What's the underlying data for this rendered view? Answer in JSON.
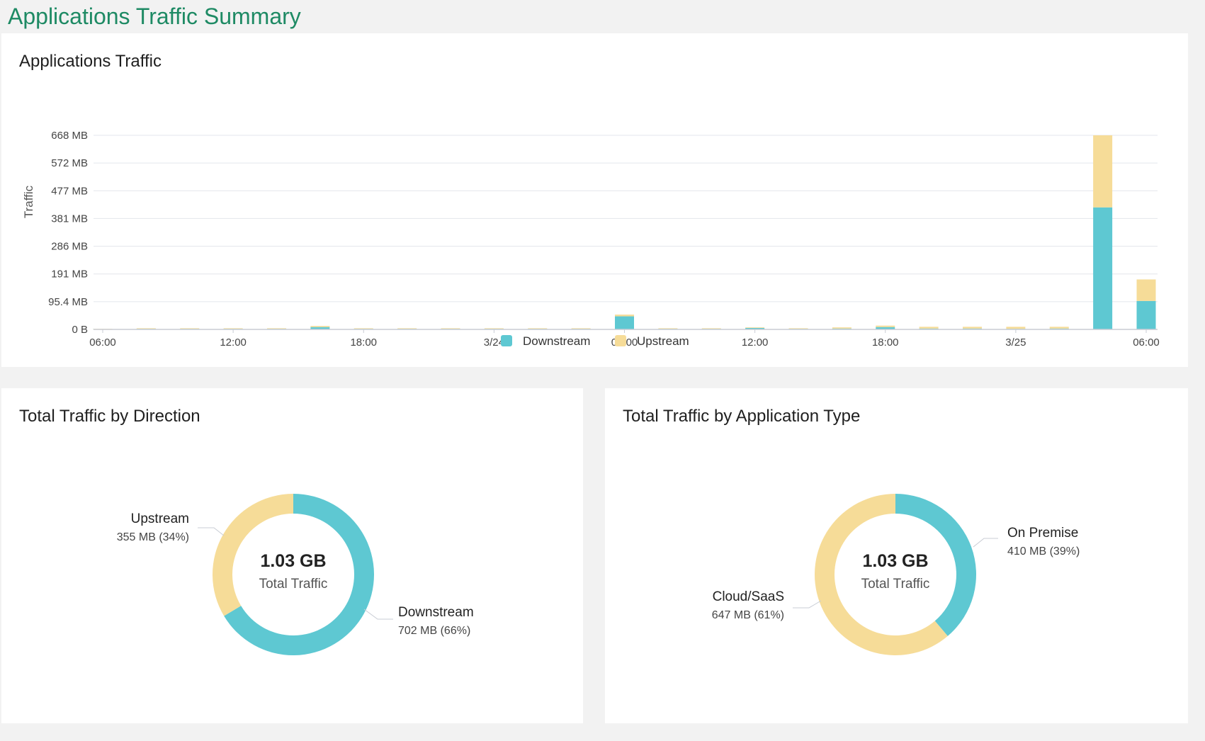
{
  "page": {
    "title": "Applications Traffic Summary"
  },
  "colors": {
    "downstream": "#5ec8d2",
    "upstream": "#f6dc98",
    "title": "#1e8a64",
    "grid": "#e3e6ec",
    "axis": "#c8ccd4"
  },
  "traffic_chart": {
    "title": "Applications Traffic",
    "ylabel": "Traffic",
    "y_ticks": [
      "668 MB",
      "572 MB",
      "477 MB",
      "381 MB",
      "286 MB",
      "191 MB",
      "95.4 MB",
      "0 B"
    ],
    "x_ticks": [
      "06:00",
      "12:00",
      "18:00",
      "3/24",
      "06:00",
      "12:00",
      "18:00",
      "3/25",
      "06:00"
    ],
    "legend": {
      "downstream": "Downstream",
      "upstream": "Upstream"
    }
  },
  "direction_chart": {
    "title": "Total Traffic by Direction",
    "center_value": "1.03 GB",
    "center_label": "Total Traffic",
    "upstream_label": "Upstream",
    "upstream_value": "355 MB (34%)",
    "downstream_label": "Downstream",
    "downstream_value": "702 MB (66%)"
  },
  "apptype_chart": {
    "title": "Total Traffic by Application Type",
    "center_value": "1.03 GB",
    "center_label": "Total Traffic",
    "onpremise_label": "On Premise",
    "onpremise_value": "410 MB (39%)",
    "cloud_label": "Cloud/SaaS",
    "cloud_value": "647 MB (61%)"
  },
  "chart_data": [
    {
      "type": "bar",
      "stacked": true,
      "title": "Applications Traffic",
      "ylabel": "Traffic",
      "ylim": [
        0,
        668
      ],
      "yunit": "MB",
      "x_tick_labels": [
        "06:00",
        "12:00",
        "18:00",
        "3/24",
        "06:00",
        "12:00",
        "18:00",
        "3/25",
        "06:00"
      ],
      "series": [
        {
          "name": "Downstream",
          "values": [
            1,
            2,
            2,
            2,
            2,
            8,
            2,
            2,
            2,
            2,
            2,
            2,
            45,
            2,
            2,
            5,
            2,
            3,
            8,
            3,
            3,
            2,
            3,
            420,
            98
          ]
        },
        {
          "name": "Upstream",
          "values": [
            1,
            2,
            2,
            2,
            2,
            4,
            2,
            2,
            2,
            2,
            2,
            2,
            6,
            2,
            2,
            2,
            2,
            4,
            5,
            6,
            6,
            7,
            6,
            248,
            74
          ]
        }
      ],
      "legend": "bottom-center",
      "grid": true
    },
    {
      "type": "pie",
      "donut": true,
      "title": "Total Traffic by Direction",
      "total": "1.03 GB",
      "slices": [
        {
          "label": "Downstream",
          "value": 702,
          "percent": 66
        },
        {
          "label": "Upstream",
          "value": 355,
          "percent": 34
        }
      ]
    },
    {
      "type": "pie",
      "donut": true,
      "title": "Total Traffic by Application Type",
      "total": "1.03 GB",
      "slices": [
        {
          "label": "On Premise",
          "value": 410,
          "percent": 39
        },
        {
          "label": "Cloud/SaaS",
          "value": 647,
          "percent": 61
        }
      ]
    }
  ]
}
